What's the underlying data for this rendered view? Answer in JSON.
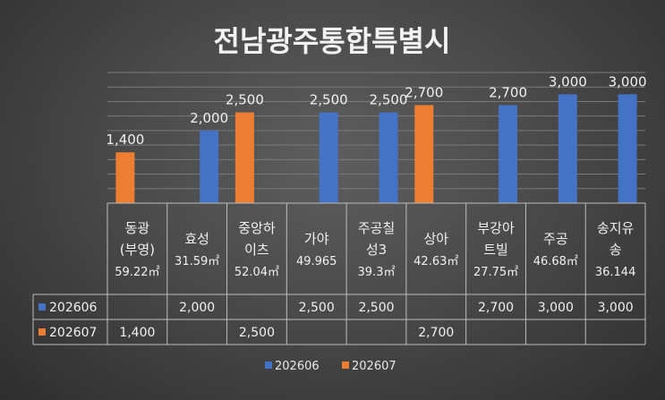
{
  "chart_data": {
    "type": "bar",
    "title": "전남광주통합특별시",
    "categories": [
      [
        "동광",
        "(부영)",
        "59.22㎡"
      ],
      [
        "효성",
        "31.59㎡"
      ],
      [
        "중앙하",
        "이츠",
        "52.04㎡"
      ],
      [
        "가야",
        "49.965"
      ],
      [
        "주공칠",
        "성3",
        "39.3㎡"
      ],
      [
        "상아",
        "42.63㎡"
      ],
      [
        "부강아",
        "트빌",
        "27.75㎡"
      ],
      [
        "주공",
        "46.68㎡"
      ],
      [
        "송지유",
        "송",
        "36.144"
      ]
    ],
    "series": [
      {
        "name": "202606",
        "color": "#4472c4",
        "values": [
          null,
          2000,
          null,
          2500,
          2500,
          null,
          2700,
          3000,
          3000
        ]
      },
      {
        "name": "202607",
        "color": "#ed7d31",
        "values": [
          1400,
          null,
          2500,
          null,
          null,
          2700,
          null,
          null,
          null
        ]
      }
    ],
    "ylim": [
      0,
      3600
    ],
    "grid": true,
    "legend_position": "bottom",
    "data_table": true,
    "xlabel": "",
    "ylabel": ""
  }
}
